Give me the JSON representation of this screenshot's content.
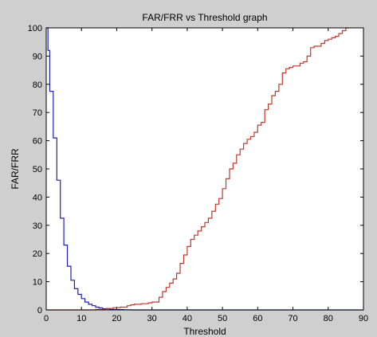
{
  "chart_data": {
    "type": "line",
    "title": "FAR/FRR vs Threshold graph",
    "xlabel": "Threshold",
    "ylabel": "FAR/FRR",
    "xlim": [
      0,
      90
    ],
    "ylim": [
      0,
      100
    ],
    "x_ticks": [
      "0",
      "10",
      "20",
      "30",
      "40",
      "50",
      "60",
      "70",
      "80",
      "90"
    ],
    "y_ticks": [
      "0",
      "10",
      "20",
      "30",
      "40",
      "50",
      "60",
      "70",
      "80",
      "90",
      "100"
    ],
    "grid": false,
    "legend": "none",
    "series": [
      {
        "color": "#1f1fb8",
        "step": true,
        "x": [
          0,
          0.5,
          1,
          2,
          3,
          4,
          5,
          6,
          7,
          8,
          9,
          10,
          11,
          12,
          13,
          14,
          15,
          16,
          18,
          20,
          22,
          24,
          90
        ],
        "y": [
          100,
          92,
          77.5,
          61,
          46,
          32.5,
          23,
          15.5,
          10.5,
          7.5,
          5.5,
          4,
          2.8,
          2,
          1.5,
          1,
          0.7,
          0.4,
          0.2,
          0.1,
          0.05,
          0,
          0
        ]
      },
      {
        "color": "#c0392b",
        "step": true,
        "x": [
          0,
          14,
          17,
          19,
          21,
          23,
          24,
          25,
          27,
          29,
          30,
          32,
          33,
          34,
          35,
          36,
          37,
          38,
          39,
          40,
          41,
          42,
          43,
          44,
          45,
          46,
          47,
          48,
          49,
          50,
          51,
          52,
          53,
          54,
          55,
          56,
          57,
          58,
          59,
          60,
          61,
          62,
          63,
          64,
          65,
          66,
          67,
          68,
          69,
          70,
          72,
          73,
          74,
          75,
          76,
          78,
          79,
          80,
          81,
          82,
          83,
          84,
          85,
          86
        ],
        "y": [
          0,
          0.2,
          0.5,
          0.8,
          1,
          1.5,
          1.8,
          2,
          2.2,
          2.5,
          2.8,
          4.5,
          6.5,
          8,
          9.5,
          11,
          13,
          16.5,
          19.5,
          22.5,
          25,
          26.5,
          28,
          29.5,
          31,
          32.5,
          35,
          37.5,
          39.5,
          43,
          46.5,
          50,
          52,
          55,
          57,
          59,
          60.5,
          61.5,
          63,
          65.5,
          66.5,
          71,
          73,
          76,
          77.5,
          80,
          84,
          85.5,
          86,
          86.5,
          87.5,
          88,
          90,
          93,
          93.5,
          94.5,
          95.5,
          96,
          96.5,
          97,
          98,
          99,
          100,
          100
        ]
      }
    ]
  }
}
